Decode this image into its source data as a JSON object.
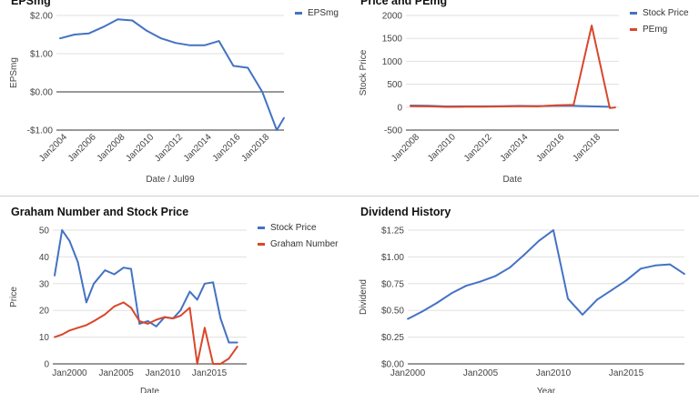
{
  "chart_data": [
    {
      "id": "eps",
      "type": "line",
      "title": "EPSmg",
      "xlabel": "Date / Jul99",
      "ylabel": "EPSmg",
      "ylim": [
        -1.0,
        2.0
      ],
      "yticks": [
        2.0,
        1.0,
        0.0,
        -1.0
      ],
      "ytick_labels": [
        "$2.00",
        "$1.00",
        "$0.00",
        "-$1.00"
      ],
      "xlim": [
        2003.25,
        2019
      ],
      "xticks": [
        2004,
        2006,
        2008,
        2010,
        2012,
        2014,
        2016,
        2018
      ],
      "xtick_labels": [
        "Jan2004",
        "Jan2006",
        "Jan2008",
        "Jan2010",
        "Jan2012",
        "Jan2014",
        "Jan2016",
        "Jan2018"
      ],
      "xtick_rotated": true,
      "baseline": 0.0,
      "legend": "top-right",
      "series": [
        {
          "name": "EPSmg",
          "color": "#4472c4",
          "x": [
            2003.5,
            2004.5,
            2005.5,
            2006.5,
            2007.5,
            2008.5,
            2009.5,
            2010.5,
            2011.5,
            2012.5,
            2013.5,
            2014.5,
            2015.5,
            2016.5,
            2017.5,
            2018.5,
            2019
          ],
          "values": [
            1.4,
            1.5,
            1.53,
            1.7,
            1.9,
            1.87,
            1.6,
            1.4,
            1.28,
            1.22,
            1.22,
            1.33,
            0.68,
            0.63,
            0.0,
            -1.0,
            -0.68
          ]
        }
      ]
    },
    {
      "id": "pe",
      "type": "line",
      "title": "Price and PEmg",
      "xlabel": "Date",
      "ylabel": "Stock Price",
      "ylim": [
        -500,
        2000
      ],
      "yticks": [
        2000,
        1500,
        1000,
        500,
        0,
        -500
      ],
      "ytick_labels": [
        "2000",
        "1500",
        "1000",
        "500",
        "0",
        "-500"
      ],
      "xlim": [
        2007.25,
        2019
      ],
      "xticks": [
        2008,
        2010,
        2012,
        2014,
        2016,
        2018
      ],
      "xtick_labels": [
        "Jan2008",
        "Jan2010",
        "Jan2012",
        "Jan2014",
        "Jan2016",
        "Jan2018"
      ],
      "xtick_rotated": true,
      "legend": "top-right",
      "series": [
        {
          "name": "Stock Price",
          "color": "#4472c4",
          "x": [
            2007.5,
            2008.5,
            2009.5,
            2010.5,
            2011.5,
            2012.5,
            2013.5,
            2014.5,
            2015.5,
            2016.5,
            2017.5,
            2018.5
          ],
          "values": [
            35,
            30,
            15,
            18,
            17,
            20,
            27,
            24,
            30,
            30,
            17,
            8
          ]
        },
        {
          "name": "PEmg",
          "color": "#d9472b",
          "x": [
            2007.5,
            2008.5,
            2009.5,
            2010.5,
            2011.5,
            2012.5,
            2013.5,
            2014.5,
            2015.5,
            2016.5,
            2017.5,
            2018.5,
            2018.8
          ],
          "values": [
            20,
            18,
            5,
            10,
            12,
            15,
            20,
            18,
            40,
            50,
            1780,
            -20,
            -5
          ]
        }
      ]
    },
    {
      "id": "graham",
      "type": "line",
      "title": "Graham Number and Stock Price",
      "xlabel": "Date",
      "ylabel": "Price",
      "ylim": [
        0,
        50
      ],
      "yticks": [
        50,
        40,
        30,
        20,
        10,
        0
      ],
      "ytick_labels": [
        "50",
        "40",
        "30",
        "20",
        "10",
        "0"
      ],
      "xlim": [
        1998.2,
        2019
      ],
      "xticks": [
        2000,
        2005,
        2010,
        2015
      ],
      "xtick_labels": [
        "Jan2000",
        "Jan2005",
        "Jan2010",
        "Jan2015"
      ],
      "xtick_rotated": false,
      "legend": "top-right",
      "series": [
        {
          "name": "Stock Price",
          "color": "#4472c4",
          "x": [
            1998.4,
            1999.2,
            2000,
            2000.9,
            2001.8,
            2002.6,
            2003.8,
            2004.8,
            2005.8,
            2006.6,
            2007.5,
            2008.4,
            2009.3,
            2010.2,
            2011.1,
            2011.9,
            2012.9,
            2013.7,
            2014.5,
            2015.4,
            2016.2,
            2017.1,
            2018.0
          ],
          "values": [
            33,
            50,
            46,
            38,
            23,
            30,
            35,
            33.5,
            36,
            35.5,
            15,
            16,
            14,
            17.5,
            17,
            20,
            27,
            24,
            30,
            30.5,
            17,
            8,
            8
          ]
        },
        {
          "name": "Graham Number",
          "color": "#d9472b",
          "x": [
            1998.4,
            1999.2,
            2000,
            2000.9,
            2001.8,
            2002.6,
            2003.8,
            2004.8,
            2005.8,
            2006.6,
            2007.5,
            2008.4,
            2009.3,
            2010.2,
            2011.1,
            2011.9,
            2012.9,
            2013.7,
            2014.5,
            2015.4,
            2016.2,
            2017.1,
            2018.0
          ],
          "values": [
            10,
            11,
            12.5,
            13.5,
            14.5,
            16,
            18.5,
            21.5,
            23,
            21,
            16,
            15,
            16.5,
            17.5,
            17,
            18,
            21,
            0,
            13.5,
            0,
            0,
            2,
            6.5
          ]
        }
      ]
    },
    {
      "id": "dividend",
      "type": "line",
      "title": "Dividend History",
      "xlabel": "Year",
      "ylabel": "Dividend",
      "ylim": [
        0,
        1.25
      ],
      "yticks": [
        1.25,
        1.0,
        0.75,
        0.5,
        0.25,
        0.0
      ],
      "ytick_labels": [
        "$1.25",
        "$1.00",
        "$0.75",
        "$0.50",
        "$0.25",
        "$0.00"
      ],
      "xlim": [
        2000,
        2019
      ],
      "xticks": [
        2000,
        2005,
        2010,
        2015
      ],
      "xtick_labels": [
        "Jan2000",
        "Jan2005",
        "Jan2010",
        "Jan2015"
      ],
      "xtick_rotated": false,
      "legend": "none",
      "series": [
        {
          "name": "Dividend",
          "color": "#4472c4",
          "x": [
            2000,
            2001,
            2002,
            2003,
            2004,
            2005,
            2006,
            2007,
            2008,
            2009,
            2010,
            2011,
            2012,
            2013,
            2014,
            2015,
            2016,
            2017,
            2018,
            2019
          ],
          "values": [
            0.42,
            0.49,
            0.57,
            0.66,
            0.73,
            0.77,
            0.82,
            0.9,
            1.02,
            1.15,
            1.25,
            0.61,
            0.46,
            0.6,
            0.69,
            0.78,
            0.89,
            0.92,
            0.93,
            0.84
          ]
        }
      ]
    }
  ]
}
